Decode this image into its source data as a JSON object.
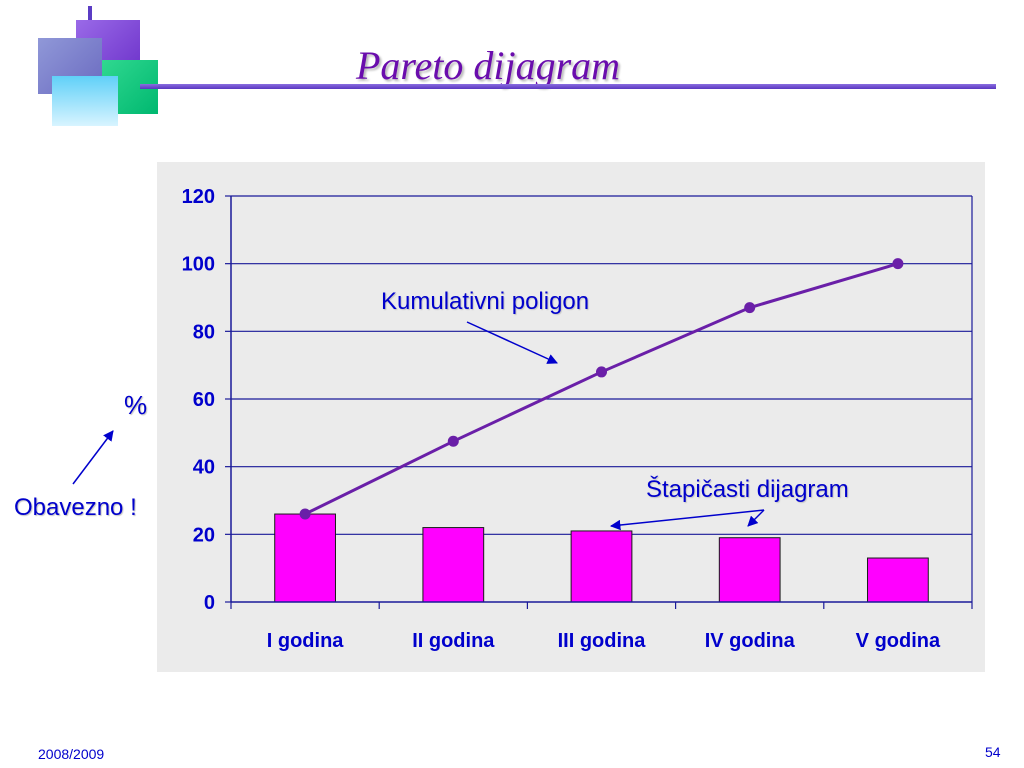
{
  "slide": {
    "title": "Pareto dijagram",
    "footer_left": "2008/2009",
    "page_number": "54"
  },
  "annotations": {
    "cumulative_label": "Kumulativni poligon",
    "bar_label": "Štapičasti dijagram",
    "percent_label": "%",
    "mandatory_label": "Obavezno !"
  },
  "colors": {
    "title": "#6a0dad",
    "bar_fill": "#ff00ff",
    "line": "#6a1fa8",
    "annotation": "#0000cc"
  },
  "chart_data": {
    "type": "bar",
    "title": "",
    "xlabel": "",
    "ylabel": "%",
    "ylim": [
      0,
      120
    ],
    "yticks": [
      0,
      20,
      40,
      60,
      80,
      100,
      120
    ],
    "grid": true,
    "categories": [
      "I godina",
      "II godina",
      "III godina",
      "IV godina",
      "V godina"
    ],
    "series": [
      {
        "name": "Štapičasti dijagram",
        "type": "bar",
        "values": [
          26,
          22,
          21,
          19,
          13
        ]
      },
      {
        "name": "Kumulativni poligon",
        "type": "line",
        "values": [
          26,
          47.5,
          68,
          87,
          100
        ]
      }
    ]
  }
}
